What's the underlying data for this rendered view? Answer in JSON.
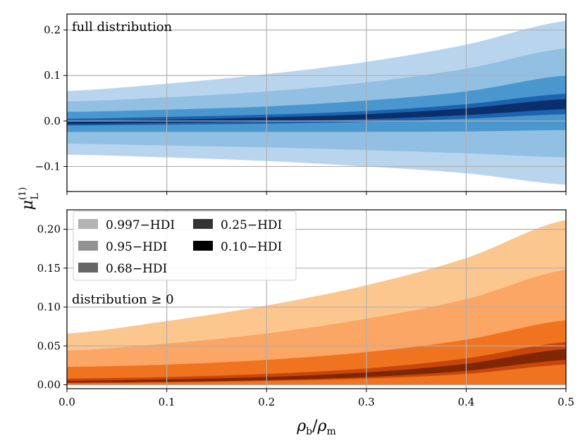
{
  "chart_data": [
    {
      "type": "area",
      "name": "top",
      "annotation": "full distribution",
      "xlim": [
        0,
        0.5
      ],
      "ylim": [
        -0.155,
        0.235
      ],
      "x_ticks": [
        0.0,
        0.1,
        0.2,
        0.3,
        0.4,
        0.5
      ],
      "y_ticks": [
        -0.1,
        0.0,
        0.1,
        0.2
      ],
      "y_tick_labels": [
        "−0.1",
        "0.0",
        "0.1",
        "0.2"
      ],
      "grid": true,
      "x": [
        0.0,
        0.1,
        0.2,
        0.3,
        0.4,
        0.5
      ],
      "bands": [
        {
          "level": "0.997-HDI",
          "color": "#b9d5ee",
          "upper": [
            0.066,
            0.082,
            0.103,
            0.13,
            0.168,
            0.22
          ],
          "lower": [
            -0.074,
            -0.08,
            -0.088,
            -0.1,
            -0.115,
            -0.14
          ]
        },
        {
          "level": "0.95-HDI",
          "color": "#92c0e3",
          "upper": [
            0.043,
            0.052,
            0.065,
            0.085,
            0.115,
            0.16
          ],
          "lower": [
            -0.05,
            -0.054,
            -0.058,
            -0.064,
            -0.071,
            -0.08
          ]
        },
        {
          "level": "0.68-HDI",
          "color": "#4a97cf",
          "upper": [
            0.02,
            0.025,
            0.032,
            0.045,
            0.065,
            0.1
          ],
          "lower": [
            -0.024,
            -0.024,
            -0.024,
            -0.024,
            -0.023,
            -0.02
          ]
        },
        {
          "level": "0.25-HDI",
          "color": "#1c63b0",
          "upper": [
            0.005,
            0.009,
            0.014,
            0.022,
            0.037,
            0.06
          ],
          "lower": [
            -0.01,
            -0.008,
            -0.006,
            -0.002,
            0.005,
            0.015
          ]
        },
        {
          "level": "0.10-HDI",
          "color": "#0b2f6b",
          "upper": [
            0.0,
            0.003,
            0.008,
            0.015,
            0.028,
            0.048
          ],
          "lower": [
            -0.007,
            -0.004,
            -0.001,
            0.004,
            0.013,
            0.026
          ]
        }
      ]
    },
    {
      "type": "area",
      "name": "bottom",
      "annotation": "distribution ≥ 0",
      "xlim": [
        0,
        0.5
      ],
      "ylim": [
        -0.005,
        0.225
      ],
      "x_ticks": [
        0.0,
        0.1,
        0.2,
        0.3,
        0.4,
        0.5
      ],
      "x_tick_labels": [
        "0.0",
        "0.1",
        "0.2",
        "0.3",
        "0.4",
        "0.5"
      ],
      "y_ticks": [
        0.0,
        0.05,
        0.1,
        0.15,
        0.2
      ],
      "y_tick_labels": [
        "0.00",
        "0.05",
        "0.10",
        "0.15",
        "0.20"
      ],
      "grid": true,
      "x": [
        0.0,
        0.1,
        0.2,
        0.3,
        0.4,
        0.5
      ],
      "bands": [
        {
          "level": "0.997-HDI",
          "color": "#fcc78f",
          "upper": [
            0.066,
            0.082,
            0.102,
            0.128,
            0.163,
            0.212
          ],
          "lower": [
            0,
            0,
            0,
            0,
            0,
            0
          ]
        },
        {
          "level": "0.95-HDI",
          "color": "#fba665",
          "upper": [
            0.044,
            0.053,
            0.066,
            0.085,
            0.11,
            0.148
          ],
          "lower": [
            0,
            0,
            0,
            0,
            0,
            0
          ]
        },
        {
          "level": "0.68-HDI",
          "color": "#f0731f",
          "upper": [
            0.023,
            0.026,
            0.032,
            0.042,
            0.058,
            0.083
          ],
          "lower": [
            0,
            0,
            0,
            0,
            0,
            0
          ]
        },
        {
          "level": "0.25-HDI",
          "color": "#c9460a",
          "upper": [
            0.008,
            0.01,
            0.014,
            0.021,
            0.034,
            0.055
          ],
          "lower": [
            0.002,
            0.003,
            0.005,
            0.008,
            0.014,
            0.026
          ]
        },
        {
          "level": "0.10-HDI",
          "color": "#7f2704",
          "upper": [
            0.005,
            0.007,
            0.01,
            0.016,
            0.027,
            0.046
          ],
          "lower": [
            0.003,
            0.004,
            0.006,
            0.01,
            0.018,
            0.032
          ]
        }
      ],
      "legend": {
        "placement": "upper-left",
        "entries": [
          {
            "label": "0.997−HDI",
            "color": "#b3b3b3"
          },
          {
            "label": "0.95−HDI",
            "color": "#929292"
          },
          {
            "label": "0.68−HDI",
            "color": "#666666"
          },
          {
            "label": "0.25−HDI",
            "color": "#333333"
          },
          {
            "label": "0.10−HDI",
            "color": "#000000"
          }
        ]
      }
    }
  ],
  "axes": {
    "ylabel_main": "μ",
    "ylabel_sup": "(1)",
    "ylabel_sub": "L",
    "xlabel_main": "ρ",
    "xlabel_sub1": "b",
    "xlabel_slash": "/",
    "xlabel_main2": "ρ",
    "xlabel_sub2": "m"
  }
}
